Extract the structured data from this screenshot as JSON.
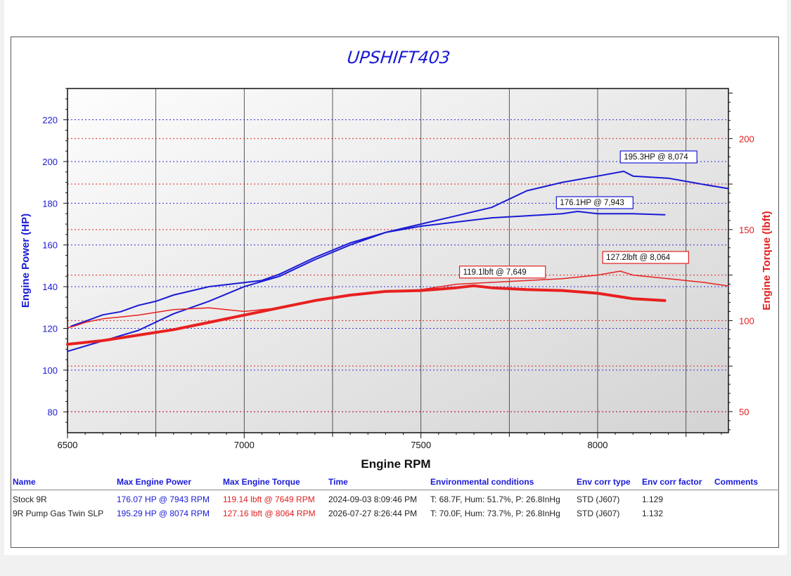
{
  "chart_data": {
    "type": "line",
    "title": "UPSHIFT403",
    "xlabel": "Engine RPM",
    "ylabel_left": "Engine Power (HP)",
    "ylabel_right": "Engine Torque (lbft)",
    "xlim": [
      6500,
      8370
    ],
    "ylim_left": [
      70,
      235
    ],
    "ylim_right": [
      38.4,
      227.5
    ],
    "x_ticks": [
      6500,
      7000,
      7500,
      8000
    ],
    "y_left_ticks": [
      80,
      100,
      120,
      140,
      160,
      180,
      200,
      220
    ],
    "y_right_ticks": [
      50,
      100,
      150,
      200
    ],
    "grid": true,
    "series": [
      {
        "name": "Stock 9R",
        "axis": "left",
        "color": "#1a1ad6",
        "width": 2,
        "x": [
          6500,
          6600,
          6700,
          6800,
          6900,
          7000,
          7100,
          7200,
          7300,
          7400,
          7500,
          7600,
          7700,
          7800,
          7900,
          7943,
          8000,
          8100,
          8190
        ],
        "y": [
          109,
          114,
          119,
          127,
          133,
          140,
          145,
          153,
          160,
          166,
          169,
          171,
          173,
          174,
          175,
          176.07,
          175,
          175,
          174.5
        ]
      },
      {
        "name": "9R Pump Gas Twin SLP",
        "axis": "left",
        "color": "#1a1ad6",
        "width": 2,
        "x": [
          6510,
          6560,
          6600,
          6650,
          6700,
          6750,
          6800,
          6900,
          7000,
          7050,
          7100,
          7200,
          7300,
          7400,
          7500,
          7600,
          7700,
          7800,
          7900,
          8000,
          8074,
          8100,
          8200,
          8300,
          8370
        ],
        "y": [
          121,
          124,
          126.5,
          128,
          131,
          133,
          136,
          140,
          142,
          143,
          146,
          154,
          161,
          166,
          170,
          174,
          178,
          186,
          190,
          193,
          195.29,
          193,
          192,
          189,
          187
        ]
      },
      {
        "name": "Stock 9R",
        "axis": "right",
        "color": "#e82020",
        "width": 4,
        "x": [
          6500,
          6600,
          6700,
          6800,
          6900,
          7000,
          7100,
          7200,
          7300,
          7400,
          7500,
          7600,
          7649,
          7700,
          7800,
          7900,
          8000,
          8100,
          8190
        ],
        "y": [
          87,
          89,
          92,
          95,
          99,
          103,
          107,
          111,
          114,
          116,
          116.5,
          118,
          119.14,
          118,
          117,
          116.5,
          115,
          112,
          111
        ]
      },
      {
        "name": "9R Pump Gas Twin SLP",
        "axis": "right",
        "color": "#e82020",
        "width": 1.5,
        "x": [
          6500,
          6520,
          6550,
          6600,
          6650,
          6700,
          6800,
          6900,
          7000,
          7100,
          7200,
          7300,
          7400,
          7500,
          7600,
          7700,
          7800,
          7900,
          8000,
          8064,
          8100,
          8200,
          8300,
          8370
        ],
        "y": [
          96,
          97,
          99,
          101,
          102,
          103,
          106,
          107,
          105,
          107,
          111,
          114,
          116,
          117,
          120,
          121,
          122,
          123,
          125,
          127.16,
          125,
          123,
          121,
          119
        ]
      }
    ],
    "annotations": [
      {
        "text": "195.3HP @ 8,074",
        "color": "#1a1ad6"
      },
      {
        "text": "176.1HP @ 7,943",
        "color": "#1a1ad6"
      },
      {
        "text": "127.2lbft @ 8,064",
        "color": "#e02020"
      },
      {
        "text": "119.1lbft @ 7,649",
        "color": "#e02020"
      }
    ]
  },
  "results_table": {
    "headers": [
      "Name",
      "Max Engine Power",
      "Max Engine Torque",
      "Time",
      "Environmental conditions",
      "Env corr type",
      "Env corr factor",
      "Comments"
    ],
    "rows": [
      [
        "Stock 9R",
        "176.07 HP @ 7943 RPM",
        "119.14 lbft @ 7649 RPM",
        "2024-09-03 8:09:46 PM",
        "T: 68.7F, Hum: 51.7%, P: 26.8InHg",
        "STD (J607)",
        "1.129",
        ""
      ],
      [
        "9R Pump Gas Twin SLP",
        "195.29 HP @ 8074 RPM",
        "127.16 lbft @ 8064 RPM",
        "2026-07-27 8:26:44 PM",
        "T: 70.0F, Hum: 73.7%, P: 26.8InHg",
        "STD (J607)",
        "1.132",
        ""
      ]
    ]
  },
  "colors": {
    "power": "#1a1ad6",
    "torque": "#e02020"
  }
}
